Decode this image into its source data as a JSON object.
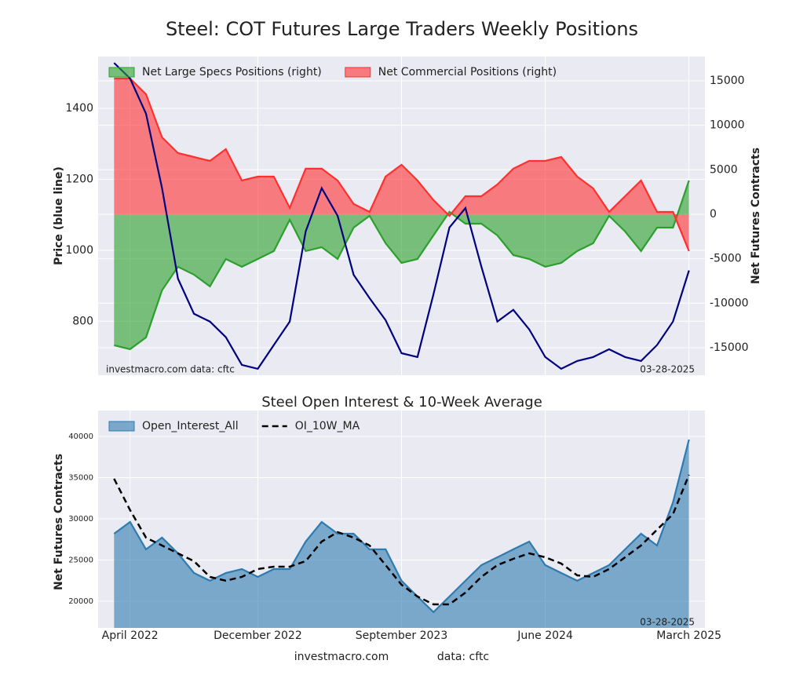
{
  "title": "Steel: COT Futures Large Traders Weekly Positions",
  "footer": [
    "investmacro.com",
    "data: cftc"
  ],
  "chart_data": [
    {
      "type": "line",
      "ylabel": "Price (blue line)",
      "y2label": "Net Futures Contracts",
      "watermark": "investmacro.com    data: cftc",
      "date_label": "03-28-2025",
      "grid": true,
      "legend": "upper left",
      "x": [
        "2022-03",
        "2022-04",
        "2022-05",
        "2022-06",
        "2022-07",
        "2022-08",
        "2022-09",
        "2022-10",
        "2022-11",
        "2022-12",
        "2023-01",
        "2023-02",
        "2023-03",
        "2023-04",
        "2023-05",
        "2023-06",
        "2023-07",
        "2023-08",
        "2023-09",
        "2023-10",
        "2023-11",
        "2023-12",
        "2024-01",
        "2024-02",
        "2024-03",
        "2024-04",
        "2024-05",
        "2024-06",
        "2024-07",
        "2024-08",
        "2024-09",
        "2024-10",
        "2024-11",
        "2024-12",
        "2025-01",
        "2025-02",
        "2025-03"
      ],
      "xlim": [
        "2022-02",
        "2025-04"
      ],
      "ylim": [
        648,
        1546
      ],
      "yticks": [
        800,
        1000,
        1200,
        1400
      ],
      "y2lim": [
        -18090,
        17730
      ],
      "y2ticks": [
        -15000,
        -10000,
        -5000,
        0,
        5000,
        10000,
        15000
      ],
      "series": [
        {
          "name": "Net Large Specs Positions (right)",
          "color": "#2ca02c",
          "axis": "y2",
          "fill": true,
          "values": [
            -14730,
            -15170,
            -13850,
            -8550,
            -5910,
            -6790,
            -8110,
            -5030,
            -5910,
            -5030,
            -4140,
            -620,
            -4140,
            -3700,
            -5030,
            -1500,
            -180,
            -3260,
            -5470,
            -5030,
            -2380,
            260,
            -1060,
            -1060,
            -2380,
            -4590,
            -5030,
            -5910,
            -5470,
            -4140,
            -3260,
            -180,
            -1940,
            -4140,
            -1500,
            -1500,
            3790
          ]
        },
        {
          "name": "Net Commercial Positions (right)",
          "color": "#ff3030",
          "axis": "y2",
          "fill": true,
          "values": [
            15260,
            15260,
            13490,
            8640,
            6880,
            6440,
            6000,
            7320,
            3790,
            4230,
            4230,
            710,
            5120,
            5120,
            3790,
            1150,
            260,
            4230,
            5560,
            3790,
            1590,
            -180,
            2030,
            2030,
            3350,
            5120,
            6000,
            6000,
            6440,
            4230,
            2910,
            260,
            2030,
            3790,
            260,
            260,
            -4140
          ]
        },
        {
          "color": "#000080",
          "axis": "y",
          "values": [
            1528,
            1484,
            1385,
            1175,
            920,
            821,
            799,
            755,
            677,
            666,
            733,
            799,
            1053,
            1175,
            1097,
            931,
            865,
            803,
            710,
            699,
            876,
            1064,
            1119,
            954,
            799,
            832,
            777,
            699,
            666,
            688,
            699,
            721,
            699,
            688,
            733,
            799,
            943
          ]
        }
      ]
    },
    {
      "type": "line",
      "title": "Steel Open Interest & 10-Week Average",
      "ylabel": "Net Futures Contracts",
      "date_label": "03-28-2025",
      "grid": true,
      "legend": "upper left",
      "x": [
        "2022-03",
        "2022-04",
        "2022-05",
        "2022-06",
        "2022-07",
        "2022-08",
        "2022-09",
        "2022-10",
        "2022-11",
        "2022-12",
        "2023-01",
        "2023-02",
        "2023-03",
        "2023-04",
        "2023-05",
        "2023-06",
        "2023-07",
        "2023-08",
        "2023-09",
        "2023-10",
        "2023-11",
        "2023-12",
        "2024-01",
        "2024-02",
        "2024-03",
        "2024-04",
        "2024-05",
        "2024-06",
        "2024-07",
        "2024-08",
        "2024-09",
        "2024-10",
        "2024-11",
        "2024-12",
        "2025-01",
        "2025-02",
        "2025-03"
      ],
      "xlim": [
        "2022-02",
        "2025-04"
      ],
      "xticks": [
        {
          "value": "2022-04",
          "label": "April 2022"
        },
        {
          "value": "2022-12",
          "label": "December 2022"
        },
        {
          "value": "2023-09",
          "label": "September 2023"
        },
        {
          "value": "2024-06",
          "label": "June 2024"
        },
        {
          "value": "2025-03",
          "label": "March 2025"
        }
      ],
      "ylim": [
        16760,
        43140
      ],
      "yticks": [
        20000,
        25000,
        30000,
        35000,
        40000
      ],
      "series": [
        {
          "name": "Open_Interest_All",
          "color": "#2e7bb0",
          "fill": true,
          "values": [
            28190,
            29620,
            26290,
            27710,
            25810,
            23430,
            22480,
            23430,
            23900,
            22950,
            23900,
            23900,
            27240,
            29620,
            28190,
            28190,
            26290,
            26290,
            22480,
            20570,
            18670,
            20570,
            22480,
            24380,
            25330,
            26290,
            27240,
            24380,
            23430,
            22480,
            23430,
            24380,
            26290,
            28190,
            26760,
            32000,
            39620
          ]
        },
        {
          "name": "OI_10W_MA",
          "color": "#000000",
          "dash": true,
          "values": [
            34860,
            31050,
            27710,
            26760,
            25810,
            24860,
            22950,
            22480,
            22950,
            23900,
            24190,
            24190,
            24860,
            27240,
            28380,
            27710,
            26760,
            24380,
            22000,
            20570,
            19620,
            19620,
            21050,
            22950,
            24380,
            25140,
            25810,
            25330,
            24570,
            23140,
            22950,
            23900,
            25330,
            26760,
            28670,
            30570,
            35330
          ]
        }
      ]
    }
  ]
}
